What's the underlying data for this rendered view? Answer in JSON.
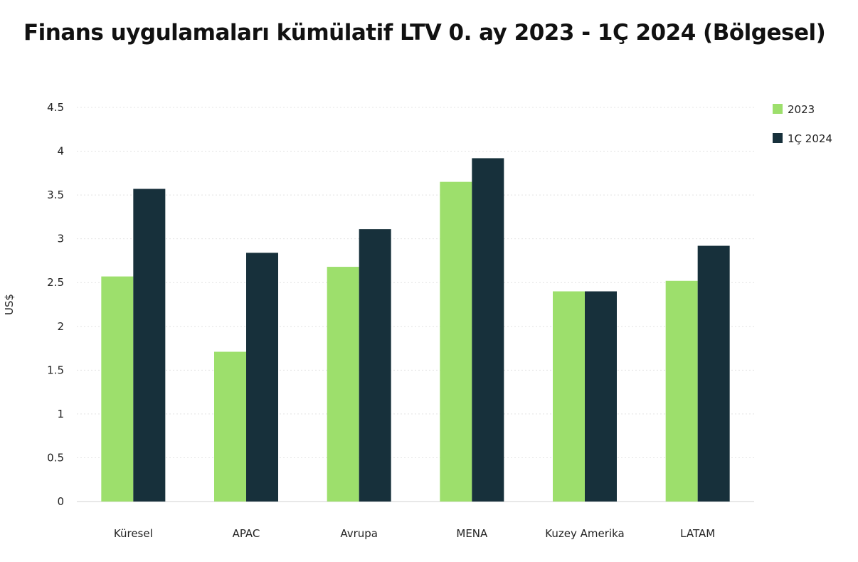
{
  "chart_data": {
    "type": "bar",
    "title": "Finans uygulamaları kümülatif LTV 0. ay 2023 - 1Ç 2024 (Bölgesel)",
    "xlabel": "",
    "ylabel": "US$",
    "ylim": [
      0,
      4.5
    ],
    "yticks": [
      "0",
      "0.5",
      "1",
      "1.5",
      "2",
      "2.5",
      "3",
      "3.5",
      "4",
      "4.5"
    ],
    "grid": true,
    "legend_position": "top-right",
    "categories": [
      "Küresel",
      "APAC",
      "Avrupa",
      "MENA",
      "Kuzey Amerika",
      "LATAM"
    ],
    "series": [
      {
        "name": "2023",
        "color": "#9ddf6c",
        "values": [
          2.57,
          1.71,
          2.68,
          3.65,
          2.4,
          2.52
        ]
      },
      {
        "name": "1Ç 2024",
        "color": "#17303b",
        "values": [
          3.57,
          2.84,
          3.11,
          3.92,
          2.4,
          2.92
        ]
      }
    ]
  }
}
